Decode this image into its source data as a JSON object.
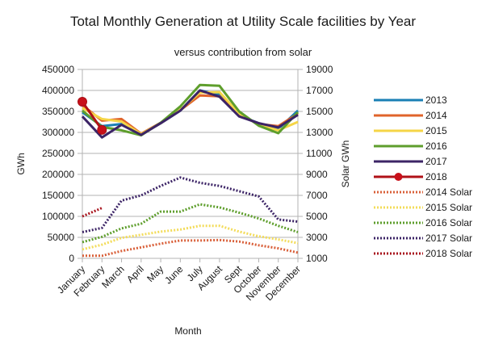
{
  "chart_data": {
    "type": "line",
    "title": "Total Monthly Generation at Utility Scale facilities by Year",
    "subtitle": "versus contribution from solar",
    "xlabel": "Month",
    "ylabel": "GWh",
    "y2label": "Solar GWh",
    "ylim": [
      0,
      450000
    ],
    "y2lim": [
      1000,
      19000
    ],
    "yticks": [
      "0",
      "50000",
      "100000",
      "150000",
      "200000",
      "250000",
      "300000",
      "350000",
      "400000",
      "450000"
    ],
    "y2ticks": [
      "1000",
      "3000",
      "5000",
      "7000",
      "9000",
      "11000",
      "13000",
      "15000",
      "17000",
      "19000"
    ],
    "grid": true,
    "legend_position": "right",
    "categories": [
      "January",
      "February",
      "March",
      "April",
      "May",
      "June",
      "July",
      "August",
      "Sept",
      "October",
      "November",
      "December"
    ],
    "series": [
      {
        "name": "2013",
        "axis": "left",
        "style": "solid",
        "color": "#1a7fb5",
        "values": [
          348000,
          315000,
          320000,
          295000,
          322000,
          352000,
          400000,
          390000,
          340000,
          322000,
          308000,
          352000
        ]
      },
      {
        "name": "2014",
        "axis": "left",
        "style": "solid",
        "color": "#e0642b",
        "values": [
          365000,
          328000,
          332000,
          297000,
          323000,
          353000,
          388000,
          386000,
          342000,
          320000,
          315000,
          345000
        ]
      },
      {
        "name": "2015",
        "axis": "left",
        "style": "solid",
        "color": "#f5d547",
        "values": [
          358000,
          332000,
          326000,
          296000,
          322000,
          354000,
          395000,
          396000,
          345000,
          318000,
          305000,
          325000
        ]
      },
      {
        "name": "2016",
        "axis": "left",
        "style": "solid",
        "color": "#5e9e2c",
        "values": [
          352000,
          313000,
          305000,
          293000,
          323000,
          362000,
          413000,
          411000,
          350000,
          316000,
          298000,
          348000
        ]
      },
      {
        "name": "2017",
        "axis": "left",
        "style": "solid",
        "color": "#3c2466",
        "values": [
          338000,
          288000,
          318000,
          294000,
          322000,
          352000,
          400000,
          385000,
          338000,
          322000,
          312000,
          342000
        ]
      },
      {
        "name": "2018",
        "axis": "left",
        "style": "solid-marker",
        "color": "#b01117",
        "values": [
          373000,
          306000,
          null,
          null,
          null,
          null,
          null,
          null,
          null,
          null,
          null,
          null
        ]
      },
      {
        "name": "2014 Solar",
        "axis": "right",
        "style": "dotted",
        "color": "#d9603a",
        "values": [
          1250,
          1250,
          1700,
          2050,
          2400,
          2700,
          2700,
          2750,
          2600,
          2250,
          1950,
          1550
        ]
      },
      {
        "name": "2015 Solar",
        "axis": "right",
        "style": "dotted",
        "color": "#f3dc5a",
        "values": [
          1850,
          2300,
          2950,
          3250,
          3550,
          3750,
          4100,
          4100,
          3550,
          3100,
          2800,
          2450
        ]
      },
      {
        "name": "2016 Solar",
        "axis": "right",
        "style": "dotted",
        "color": "#5e9e2c",
        "values": [
          2550,
          3050,
          3850,
          4300,
          5450,
          5450,
          6150,
          5850,
          5350,
          4800,
          4100,
          3500
        ]
      },
      {
        "name": "2017 Solar",
        "axis": "right",
        "style": "dotted",
        "color": "#3c2466",
        "values": [
          3500,
          3900,
          6500,
          7000,
          7900,
          8700,
          8200,
          7900,
          7400,
          6900,
          4700,
          4500
        ]
      },
      {
        "name": "2018 Solar",
        "axis": "right",
        "style": "dotted",
        "color": "#a8131c",
        "values": [
          5000,
          5800,
          null,
          null,
          null,
          null,
          null,
          null,
          null,
          null,
          null,
          null
        ]
      }
    ]
  }
}
